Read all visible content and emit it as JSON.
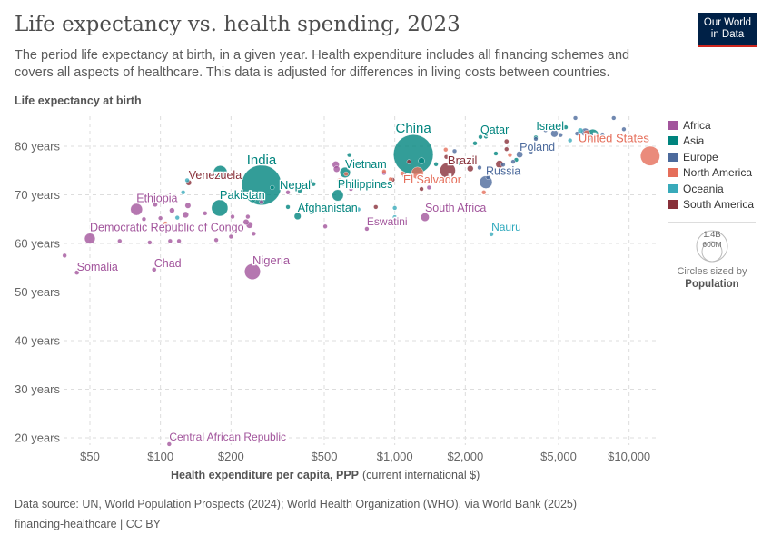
{
  "header": {
    "title": "Life expectancy vs. health spending, 2023",
    "subtitle": "The period life expectancy at birth, in a given year. Health expenditure includes all financing schemes and covers all aspects of healthcare. This data is adjusted for differences in living costs between countries.",
    "logo": "Our World in Data"
  },
  "legend": {
    "items": [
      {
        "label": "Africa",
        "color": "#a2559c"
      },
      {
        "label": "Asia",
        "color": "#00847e"
      },
      {
        "label": "Europe",
        "color": "#4c6a9c"
      },
      {
        "label": "North America",
        "color": "#e56e5a"
      },
      {
        "label": "Oceania",
        "color": "#38aaba"
      },
      {
        "label": "South America",
        "color": "#883039"
      }
    ],
    "size_large": "1.4B",
    "size_small": "600M",
    "size_caption": "Circles sized by",
    "size_variable": "Population"
  },
  "footer": {
    "source": "Data source: UN, World Population Prospects (2024); World Health Organization (WHO), via World Bank (2025)",
    "license": "financing-healthcare | CC BY"
  },
  "chart_data": {
    "type": "scatter",
    "title": "Life expectancy vs. health spending, 2023",
    "ylabel": "Life expectancy at birth",
    "xlabel": "Health expenditure per capita, PPP",
    "xlabel_unit": "(current international $)",
    "x_scale": "log",
    "xlim": [
      36,
      13300
    ],
    "ylim": [
      18,
      86
    ],
    "grid": true,
    "legend_position": "right",
    "x_ticks": [
      {
        "v": 50,
        "label": "$50"
      },
      {
        "v": 100,
        "label": "$100"
      },
      {
        "v": 200,
        "label": "$200"
      },
      {
        "v": 500,
        "label": "$500"
      },
      {
        "v": 1000,
        "label": "$1,000"
      },
      {
        "v": 2000,
        "label": "$2,000"
      },
      {
        "v": 5000,
        "label": "$5,000"
      },
      {
        "v": 10000,
        "label": "$10,000"
      }
    ],
    "y_ticks": [
      {
        "v": 20,
        "label": "20 years"
      },
      {
        "v": 30,
        "label": "30 years"
      },
      {
        "v": 40,
        "label": "40 years"
      },
      {
        "v": 50,
        "label": "50 years"
      },
      {
        "v": 60,
        "label": "60 years"
      },
      {
        "v": 70,
        "label": "70 years"
      },
      {
        "v": 80,
        "label": "80 years"
      }
    ],
    "points": [
      {
        "label": "India",
        "x": 270,
        "y": 72.0,
        "c": "Asia",
        "pop": 1430
      },
      {
        "label": "China",
        "x": 1200,
        "y": 78.3,
        "c": "Asia",
        "pop": 1410
      },
      {
        "label": "United States",
        "x": 12300,
        "y": 78.0,
        "c": "North America",
        "pop": 335
      },
      {
        "label": "Nigeria",
        "x": 247,
        "y": 54.2,
        "c": "Africa",
        "pop": 224
      },
      {
        "label": "Pakistan",
        "x": 179,
        "y": 67.3,
        "c": "Asia",
        "pop": 240
      },
      {
        "label": "Ethiopia",
        "x": 79,
        "y": 67.0,
        "c": "Africa",
        "pop": 127
      },
      {
        "label": "Democratic Republic of Congo",
        "x": 50,
        "y": 61.0,
        "c": "Africa",
        "pop": 102
      },
      {
        "label": "Somalia",
        "x": 44,
        "y": 54.0,
        "c": "Africa",
        "pop": 18
      },
      {
        "label": "Chad",
        "x": 94,
        "y": 54.6,
        "c": "Africa",
        "pop": 18
      },
      {
        "label": "Venezuela",
        "x": 132,
        "y": 72.5,
        "c": "South America",
        "pop": 28
      },
      {
        "label": "Nepal",
        "x": 393,
        "y": 71.0,
        "c": "Asia",
        "pop": 30
      },
      {
        "label": "Afghanistan",
        "x": 385,
        "y": 65.6,
        "c": "Asia",
        "pop": 42
      },
      {
        "label": "Philippines",
        "x": 571,
        "y": 69.9,
        "c": "Asia",
        "pop": 115
      },
      {
        "label": "Vietnam",
        "x": 614,
        "y": 74.6,
        "c": "Asia",
        "pop": 99
      },
      {
        "label": "Central African Republic",
        "x": 109,
        "y": 18.7,
        "c": "Africa",
        "pop": 5
      },
      {
        "label": "Eswatini",
        "x": 760,
        "y": 63.0,
        "c": "Africa",
        "pop": 1
      },
      {
        "label": "South Africa",
        "x": 1346,
        "y": 65.4,
        "c": "Africa",
        "pop": 63
      },
      {
        "label": "Nauru",
        "x": 2585,
        "y": 61.9,
        "c": "Oceania",
        "pop": 0.01
      },
      {
        "label": "Russia",
        "x": 2449,
        "y": 72.6,
        "c": "Europe",
        "pop": 144
      },
      {
        "label": "Brazil",
        "x": 1682,
        "y": 75.0,
        "c": "South America",
        "pop": 216
      },
      {
        "label": "El Salvador",
        "x": 1077,
        "y": 74.4,
        "c": "North America",
        "pop": 6
      },
      {
        "label": "Qatar",
        "x": 2321,
        "y": 81.9,
        "c": "Asia",
        "pop": 3
      },
      {
        "label": "Poland",
        "x": 3410,
        "y": 78.3,
        "c": "Europe",
        "pop": 38
      },
      {
        "label": "Israel",
        "x": 5370,
        "y": 83.9,
        "c": "Asia",
        "pop": 9
      },
      {
        "x": 39,
        "y": 57.5,
        "c": "Africa",
        "pop": 8
      },
      {
        "x": 67,
        "y": 60.5,
        "c": "Africa",
        "pop": 12
      },
      {
        "x": 85,
        "y": 65,
        "c": "Africa",
        "pop": 8
      },
      {
        "x": 90,
        "y": 60.2,
        "c": "Africa",
        "pop": 10
      },
      {
        "x": 95,
        "y": 68,
        "c": "Africa",
        "pop": 20
      },
      {
        "x": 100,
        "y": 65.2,
        "c": "Africa",
        "pop": 10
      },
      {
        "x": 110,
        "y": 60.5,
        "c": "Africa",
        "pop": 9
      },
      {
        "x": 120,
        "y": 60.5,
        "c": "Africa",
        "pop": 9
      },
      {
        "x": 112,
        "y": 66.8,
        "c": "Africa",
        "pop": 25
      },
      {
        "x": 131,
        "y": 67.8,
        "c": "Africa",
        "pop": 30
      },
      {
        "x": 128,
        "y": 65.9,
        "c": "Africa",
        "pop": 35
      },
      {
        "x": 155,
        "y": 66.2,
        "c": "Africa",
        "pop": 12
      },
      {
        "x": 173,
        "y": 60.7,
        "c": "Africa",
        "pop": 8
      },
      {
        "x": 200,
        "y": 61.4,
        "c": "Africa",
        "pop": 10
      },
      {
        "x": 203,
        "y": 65.5,
        "c": "Africa",
        "pop": 10
      },
      {
        "x": 232,
        "y": 64.4,
        "c": "Africa",
        "pop": 30
      },
      {
        "x": 240,
        "y": 63.8,
        "c": "Africa",
        "pop": 40
      },
      {
        "x": 250,
        "y": 62,
        "c": "Africa",
        "pop": 8
      },
      {
        "x": 236,
        "y": 65.5,
        "c": "Africa",
        "pop": 15
      },
      {
        "x": 270,
        "y": 68.5,
        "c": "Africa",
        "pop": 5
      },
      {
        "x": 350,
        "y": 70.5,
        "c": "Africa",
        "pop": 6
      },
      {
        "x": 505,
        "y": 63.5,
        "c": "Africa",
        "pop": 2
      },
      {
        "x": 560,
        "y": 76.2,
        "c": "Africa",
        "pop": 45
      },
      {
        "x": 565,
        "y": 75.3,
        "c": "Africa",
        "pop": 37
      },
      {
        "x": 900,
        "y": 74.5,
        "c": "Africa",
        "pop": 12
      },
      {
        "x": 650,
        "y": 71.2,
        "c": "Africa",
        "pop": 4
      },
      {
        "x": 1400,
        "y": 71.5,
        "c": "Africa",
        "pop": 3
      },
      {
        "x": 180,
        "y": 74.6,
        "c": "Asia",
        "pop": 170
      },
      {
        "x": 300,
        "y": 71.5,
        "c": "Asia",
        "pop": 5
      },
      {
        "x": 435,
        "y": 72.8,
        "c": "Asia",
        "pop": 20
      },
      {
        "x": 450,
        "y": 72.2,
        "c": "Asia",
        "pop": 10
      },
      {
        "x": 640,
        "y": 78.2,
        "c": "Asia",
        "pop": 3
      },
      {
        "x": 700,
        "y": 76,
        "c": "Asia",
        "pop": 5
      },
      {
        "x": 250,
        "y": 69,
        "c": "Asia",
        "pop": 5
      },
      {
        "x": 350,
        "y": 67.5,
        "c": "Asia",
        "pop": 8
      },
      {
        "x": 1300,
        "y": 77,
        "c": "Asia",
        "pop": 35
      },
      {
        "x": 1500,
        "y": 76.3,
        "c": "Asia",
        "pop": 10
      },
      {
        "x": 1900,
        "y": 76.5,
        "c": "Asia",
        "pop": 5
      },
      {
        "x": 2200,
        "y": 80.6,
        "c": "Asia",
        "pop": 4
      },
      {
        "x": 2450,
        "y": 82,
        "c": "Asia",
        "pop": 2
      },
      {
        "x": 2700,
        "y": 78.5,
        "c": "Asia",
        "pop": 5
      },
      {
        "x": 3300,
        "y": 77.2,
        "c": "Asia",
        "pop": 10
      },
      {
        "x": 4000,
        "y": 81.8,
        "c": "Asia",
        "pop": 5
      },
      {
        "x": 7000,
        "y": 82.3,
        "c": "Asia",
        "pop": 125
      },
      {
        "x": 1800,
        "y": 79,
        "c": "Europe",
        "pop": 4
      },
      {
        "x": 2300,
        "y": 75.6,
        "c": "Europe",
        "pop": 6
      },
      {
        "x": 2900,
        "y": 76.2,
        "c": "Europe",
        "pop": 4
      },
      {
        "x": 3200,
        "y": 76.8,
        "c": "Europe",
        "pop": 8
      },
      {
        "x": 3800,
        "y": 78.8,
        "c": "Europe",
        "pop": 10
      },
      {
        "x": 4000,
        "y": 81.5,
        "c": "Europe",
        "pop": 5
      },
      {
        "x": 4800,
        "y": 82.6,
        "c": "Europe",
        "pop": 47
      },
      {
        "x": 5100,
        "y": 82.3,
        "c": "Europe",
        "pop": 10
      },
      {
        "x": 6000,
        "y": 82.6,
        "c": "Europe",
        "pop": 10
      },
      {
        "x": 6500,
        "y": 82.9,
        "c": "Europe",
        "pop": 59
      },
      {
        "x": 7100,
        "y": 81.8,
        "c": "Europe",
        "pop": 68
      },
      {
        "x": 7700,
        "y": 82.4,
        "c": "Europe",
        "pop": 10
      },
      {
        "x": 8600,
        "y": 85.8,
        "c": "Europe",
        "pop": 5
      },
      {
        "x": 9500,
        "y": 83.5,
        "c": "Europe",
        "pop": 5
      },
      {
        "x": 5900,
        "y": 85.8,
        "c": "Europe",
        "pop": 1
      },
      {
        "x": 4400,
        "y": 83.3,
        "c": "Europe",
        "pop": 5
      },
      {
        "x": 2500,
        "y": 73.6,
        "c": "Europe",
        "pop": 10
      },
      {
        "x": 580,
        "y": 73,
        "c": "North America",
        "pop": 11
      },
      {
        "x": 620,
        "y": 74.3,
        "c": "North America",
        "pop": 3
      },
      {
        "x": 900,
        "y": 74.8,
        "c": "North America",
        "pop": 4
      },
      {
        "x": 960,
        "y": 73.2,
        "c": "North America",
        "pop": 4
      },
      {
        "x": 1250,
        "y": 74.5,
        "c": "North America",
        "pop": 129
      },
      {
        "x": 1650,
        "y": 79.3,
        "c": "North America",
        "pop": 3
      },
      {
        "x": 2400,
        "y": 70.5,
        "c": "North America",
        "pop": 1
      },
      {
        "x": 3100,
        "y": 78.2,
        "c": "North America",
        "pop": 5
      },
      {
        "x": 6600,
        "y": 82.6,
        "c": "North America",
        "pop": 40
      },
      {
        "x": 105,
        "y": 64.1,
        "c": "North America",
        "pop": 11
      },
      {
        "x": 130,
        "y": 73,
        "c": "Oceania",
        "pop": 1
      },
      {
        "x": 125,
        "y": 70.5,
        "c": "Oceania",
        "pop": 1
      },
      {
        "x": 118,
        "y": 65.3,
        "c": "Oceania",
        "pop": 10
      },
      {
        "x": 600,
        "y": 72.2,
        "c": "Oceania",
        "pop": 1
      },
      {
        "x": 700,
        "y": 67,
        "c": "Oceania",
        "pop": 1
      },
      {
        "x": 1000,
        "y": 67.3,
        "c": "Oceania",
        "pop": 1
      },
      {
        "x": 1000,
        "y": 65.4,
        "c": "Oceania",
        "pop": 1
      },
      {
        "x": 5600,
        "y": 81.2,
        "c": "Oceania",
        "pop": 5
      },
      {
        "x": 6200,
        "y": 83.2,
        "c": "Oceania",
        "pop": 27
      },
      {
        "x": 650,
        "y": 72.3,
        "c": "South America",
        "pop": 7
      },
      {
        "x": 980,
        "y": 73.1,
        "c": "South America",
        "pop": 7
      },
      {
        "x": 1100,
        "y": 74,
        "c": "South America",
        "pop": 18
      },
      {
        "x": 1300,
        "y": 71.2,
        "c": "South America",
        "pop": 12
      },
      {
        "x": 1660,
        "y": 77.8,
        "c": "South America",
        "pop": 1
      },
      {
        "x": 2100,
        "y": 75.4,
        "c": "South America",
        "pop": 34
      },
      {
        "x": 2800,
        "y": 76.3,
        "c": "South America",
        "pop": 52
      },
      {
        "x": 3000,
        "y": 81,
        "c": "South America",
        "pop": 19
      },
      {
        "x": 3000,
        "y": 79.4,
        "c": "South America",
        "pop": 4
      },
      {
        "x": 830,
        "y": 67.5,
        "c": "South America",
        "pop": 1
      },
      {
        "x": 1150,
        "y": 76.8,
        "c": "South America",
        "pop": 3
      }
    ]
  }
}
